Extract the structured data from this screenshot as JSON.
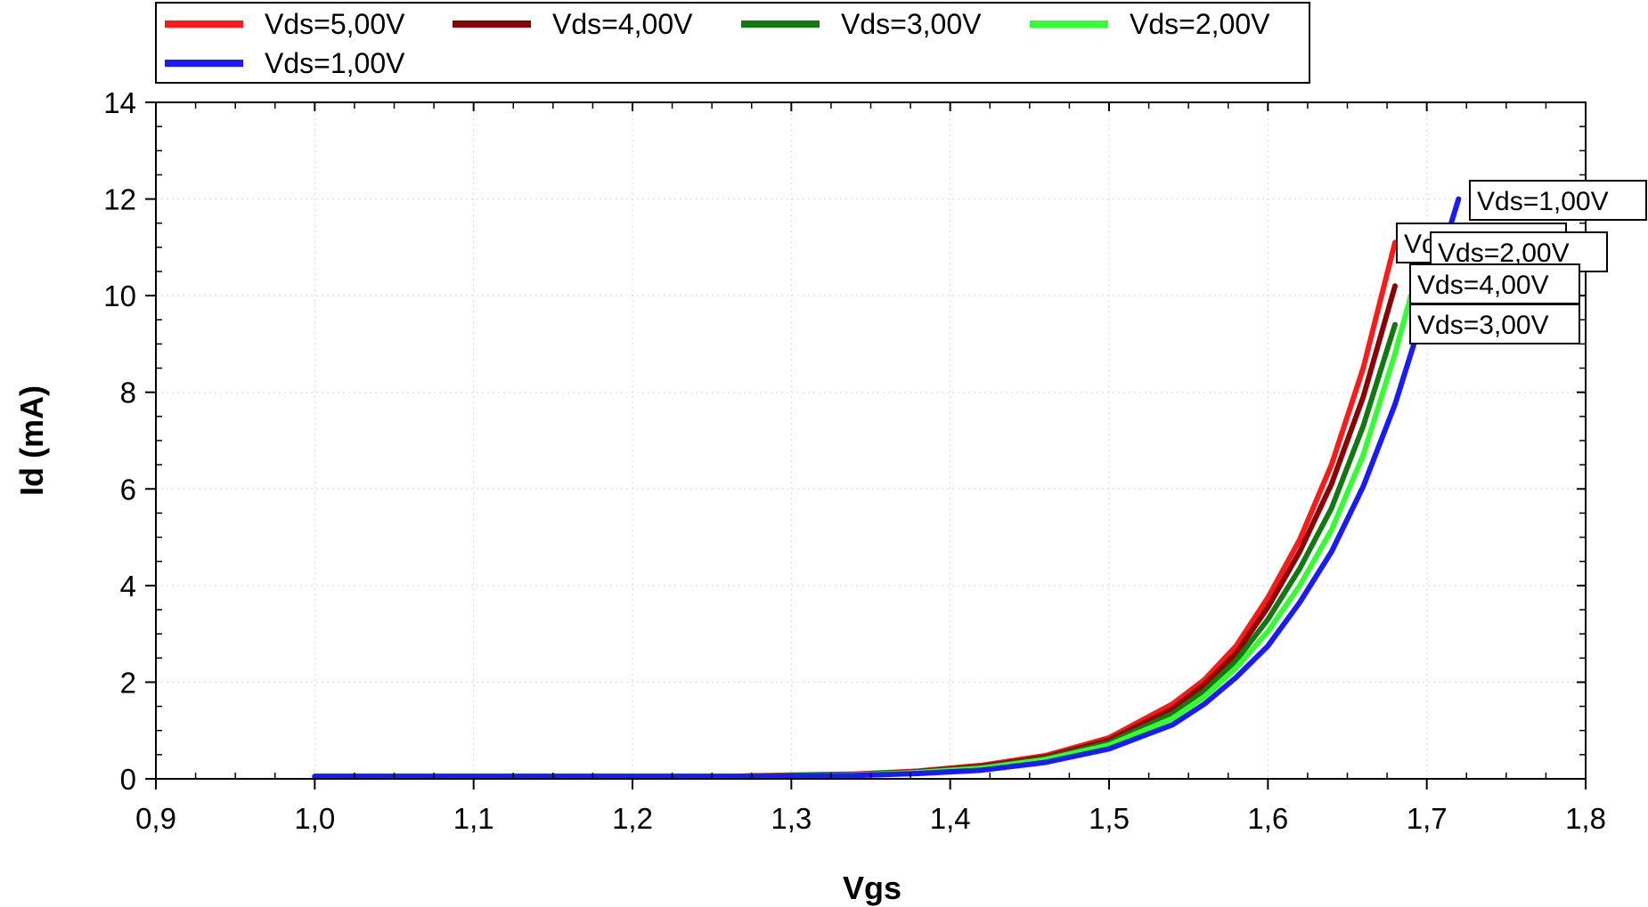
{
  "chart_data": {
    "type": "line",
    "xlabel": "Vgs",
    "ylabel": "Id (mA)",
    "xlim": [
      0.9,
      1.8
    ],
    "ylim": [
      0,
      14
    ],
    "x_ticks": [
      "0,9",
      "1,0",
      "1,1",
      "1,2",
      "1,3",
      "1,4",
      "1,5",
      "1,6",
      "1,7",
      "1,8"
    ],
    "y_ticks": [
      "0",
      "2",
      "4",
      "6",
      "8",
      "10",
      "12",
      "14"
    ],
    "grid": true,
    "legend_position": "top",
    "series": [
      {
        "name": "Vds=5,00V",
        "color": "#ff1a1a",
        "x": [
          1.0,
          1.1,
          1.2,
          1.26,
          1.3,
          1.34,
          1.38,
          1.42,
          1.46,
          1.5,
          1.54,
          1.56,
          1.58,
          1.6,
          1.62,
          1.64,
          1.66,
          1.68
        ],
        "y": [
          0.05,
          0.05,
          0.05,
          0.05,
          0.08,
          0.1,
          0.16,
          0.28,
          0.48,
          0.85,
          1.55,
          2.05,
          2.75,
          3.75,
          4.95,
          6.5,
          8.5,
          11.1
        ]
      },
      {
        "name": "Vds=4,00V",
        "color": "#8b0000",
        "x": [
          1.0,
          1.1,
          1.2,
          1.26,
          1.3,
          1.34,
          1.38,
          1.42,
          1.46,
          1.5,
          1.54,
          1.56,
          1.58,
          1.6,
          1.62,
          1.64,
          1.66,
          1.68
        ],
        "y": [
          0.05,
          0.05,
          0.05,
          0.05,
          0.07,
          0.09,
          0.15,
          0.26,
          0.45,
          0.8,
          1.45,
          1.95,
          2.6,
          3.55,
          4.7,
          6.1,
          7.9,
          10.2
        ]
      },
      {
        "name": "Vds=3,00V",
        "color": "#0f7a0f",
        "x": [
          1.0,
          1.1,
          1.2,
          1.26,
          1.3,
          1.34,
          1.38,
          1.42,
          1.46,
          1.5,
          1.54,
          1.56,
          1.58,
          1.6,
          1.62,
          1.64,
          1.66,
          1.68
        ],
        "y": [
          0.05,
          0.05,
          0.05,
          0.05,
          0.07,
          0.09,
          0.14,
          0.24,
          0.42,
          0.75,
          1.35,
          1.82,
          2.45,
          3.3,
          4.35,
          5.6,
          7.3,
          9.4
        ]
      },
      {
        "name": "Vds=2,00V",
        "color": "#33ff33",
        "x": [
          1.0,
          1.1,
          1.2,
          1.26,
          1.3,
          1.34,
          1.38,
          1.42,
          1.46,
          1.5,
          1.54,
          1.56,
          1.58,
          1.6,
          1.62,
          1.64,
          1.66,
          1.68,
          1.69
        ],
        "y": [
          0.05,
          0.05,
          0.05,
          0.05,
          0.06,
          0.08,
          0.13,
          0.22,
          0.4,
          0.7,
          1.25,
          1.7,
          2.3,
          3.05,
          4.0,
          5.15,
          6.7,
          8.8,
          10.0
        ]
      },
      {
        "name": "Vds=1,00V",
        "color": "#1a1aff",
        "x": [
          1.0,
          1.1,
          1.2,
          1.26,
          1.3,
          1.34,
          1.38,
          1.42,
          1.46,
          1.5,
          1.54,
          1.56,
          1.58,
          1.6,
          1.62,
          1.64,
          1.66,
          1.68,
          1.7,
          1.72
        ],
        "y": [
          0.05,
          0.05,
          0.05,
          0.05,
          0.06,
          0.07,
          0.11,
          0.18,
          0.34,
          0.62,
          1.12,
          1.55,
          2.1,
          2.75,
          3.65,
          4.7,
          6.05,
          7.75,
          9.85,
          12.0
        ]
      }
    ],
    "end_labels": [
      "Vds=5,00V",
      "Vds=2,00V",
      "Vds=4,00V",
      "Vds=3,00V",
      "Vds=1,00V"
    ]
  }
}
